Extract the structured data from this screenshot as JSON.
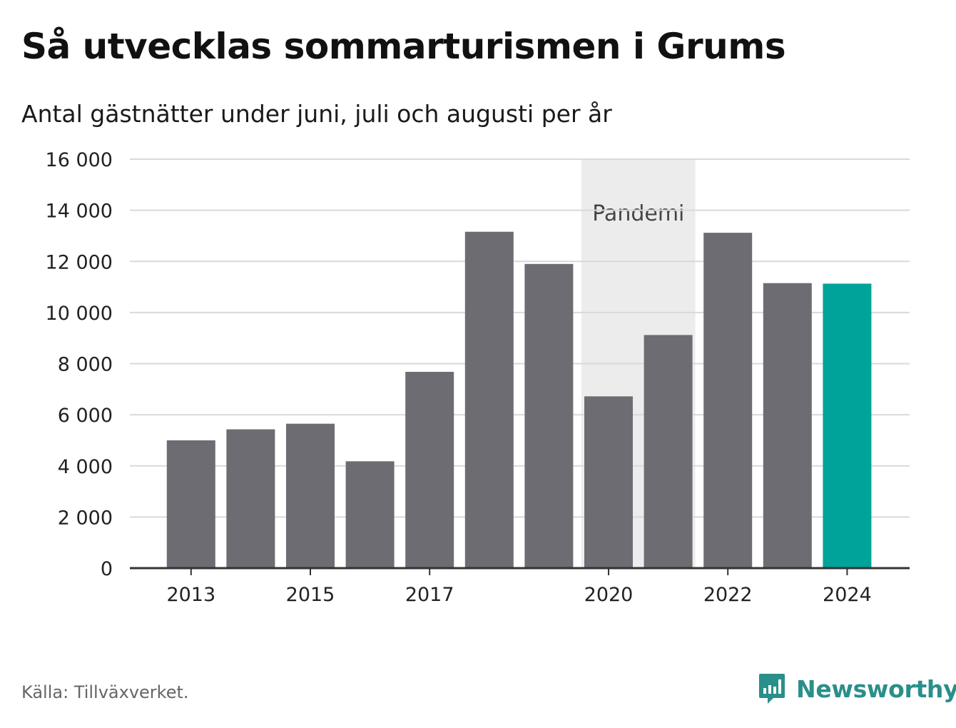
{
  "title": "Så utvecklas sommarturismen i Grums",
  "subtitle": "Antal gästnätter under juni, juli och augusti per år",
  "source": "Källa: Tillväxverket.",
  "brand": {
    "name": "Newsworthy",
    "icon": "newsworthy-logo-icon",
    "color": "#2a8f8b"
  },
  "chart_data": {
    "type": "bar",
    "categories": [
      "2013",
      "2014",
      "2015",
      "2016",
      "2017",
      "2018",
      "2019",
      "2020",
      "2021",
      "2022",
      "2023",
      "2024"
    ],
    "values": [
      5000,
      5430,
      5650,
      4180,
      7680,
      13160,
      11900,
      6720,
      9120,
      13120,
      11150,
      11130
    ],
    "x_tick_labels": [
      "2013",
      "2015",
      "2017",
      "2020",
      "2022",
      "2024"
    ],
    "y_ticks": [
      0,
      2000,
      4000,
      6000,
      8000,
      10000,
      12000,
      14000,
      16000
    ],
    "y_tick_labels": [
      "0",
      "2 000",
      "4 000",
      "6 000",
      "8 000",
      "10 000",
      "12 000",
      "14 000",
      "16 000"
    ],
    "ylim": [
      0,
      16000
    ],
    "grid": true,
    "bar_color": "#6d6c72",
    "highlight_color": "#00a39a",
    "highlight_category": "2024",
    "annotation": {
      "label": "Pandemi",
      "from": "2020",
      "to": "2021",
      "color": "#ececec"
    }
  }
}
